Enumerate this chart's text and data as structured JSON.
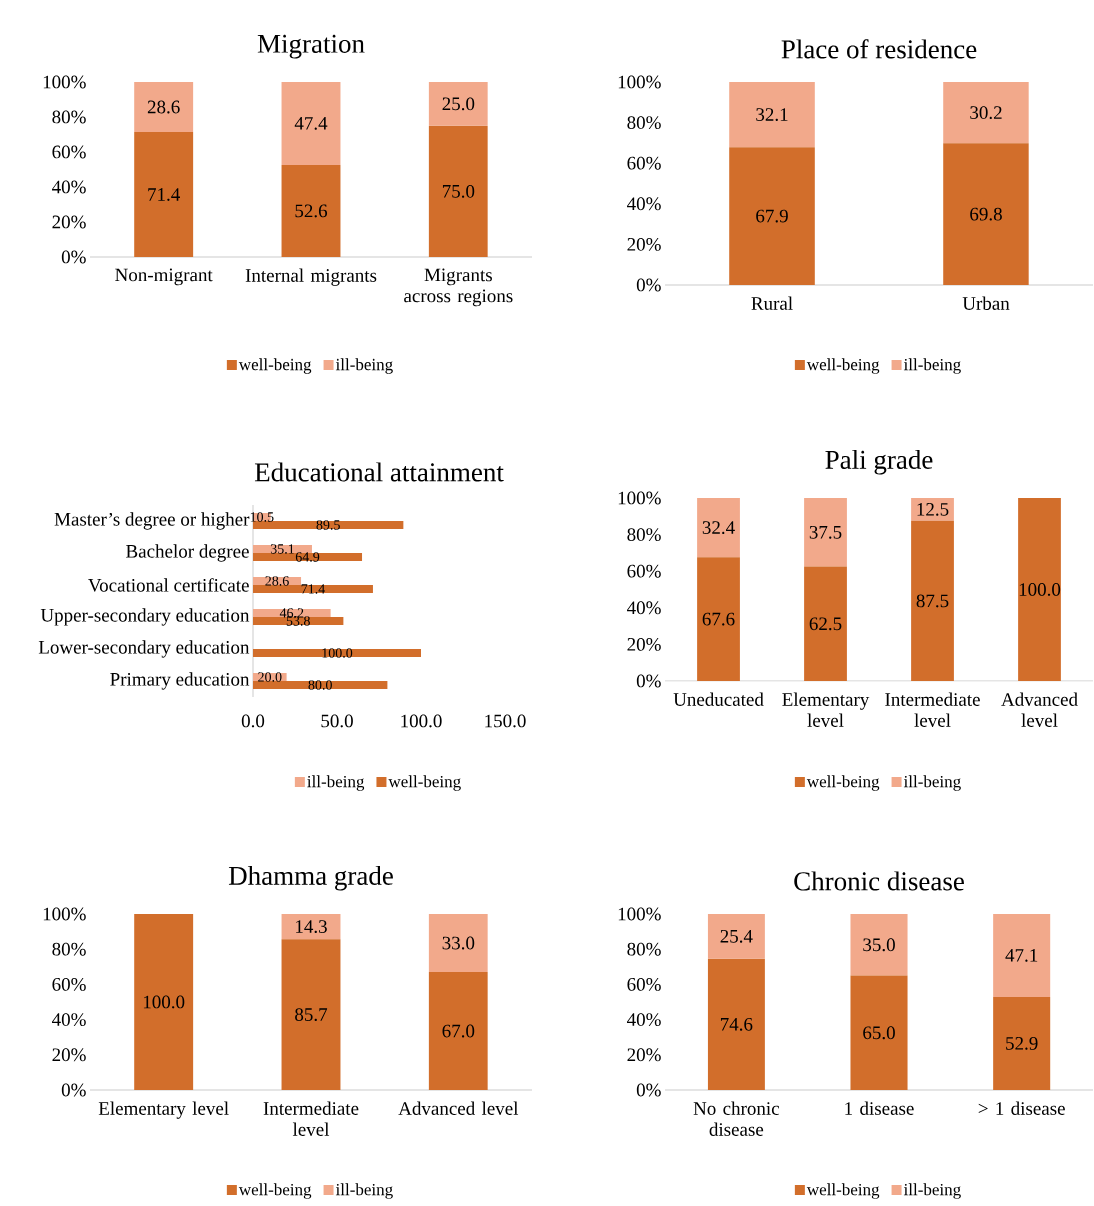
{
  "chart_data": [
    {
      "type": "bar",
      "title": "Migration",
      "stacked": true,
      "legend": "bottom",
      "categories": [
        "Non-migrant",
        "Internal migrants",
        "Migrants across regions"
      ],
      "series": [
        {
          "name": "well-being",
          "color": "#d26e2b",
          "values": [
            71.4,
            52.6,
            75.0
          ],
          "value_labels": [
            "71.4",
            "52.6",
            "75.0"
          ]
        },
        {
          "name": "ill-being",
          "color": "#f2a98b",
          "values": [
            28.6,
            47.4,
            25.0
          ],
          "value_labels": [
            "28.6",
            "47.4",
            "25.0"
          ]
        }
      ],
      "ylim": [
        0,
        100
      ],
      "yticks": [
        {
          "value": 0,
          "label": "0%"
        },
        {
          "value": 20,
          "label": "20%"
        },
        {
          "value": 40,
          "label": "40%"
        },
        {
          "value": 60,
          "label": "60%"
        },
        {
          "value": 80,
          "label": "80%"
        },
        {
          "value": 100,
          "label": "100%"
        }
      ]
    },
    {
      "type": "bar",
      "title": "Place of residence",
      "stacked": true,
      "legend": "bottom",
      "categories": [
        "Rural",
        "Urban"
      ],
      "series": [
        {
          "name": "well-being",
          "color": "#d26e2b",
          "values": [
            67.9,
            69.8
          ],
          "value_labels": [
            "67.9",
            "69.8"
          ]
        },
        {
          "name": "ill-being",
          "color": "#f2a98b",
          "values": [
            32.1,
            30.2
          ],
          "value_labels": [
            "32.1",
            "30.2"
          ]
        }
      ],
      "ylim": [
        0,
        100
      ],
      "yticks": [
        {
          "value": 0,
          "label": "0%"
        },
        {
          "value": 20,
          "label": "20%"
        },
        {
          "value": 40,
          "label": "40%"
        },
        {
          "value": 60,
          "label": "60%"
        },
        {
          "value": 80,
          "label": "80%"
        },
        {
          "value": 100,
          "label": "100%"
        }
      ]
    },
    {
      "type": "bar",
      "title": "Educational attainment",
      "orientation": "horizontal",
      "legend": "bottom",
      "categories": [
        "Master’s degree or higher",
        "Bachelor degree",
        "Vocational certificate",
        "Upper-secondary education",
        "Lower-secondary education",
        "Primary education"
      ],
      "series": [
        {
          "name": "ill-being",
          "color": "#f2a98b",
          "values": [
            10.5,
            35.1,
            28.6,
            46.2,
            0,
            20.0
          ],
          "value_labels": [
            "10.5",
            "35.1",
            "28.6",
            "46.2",
            null,
            "20.0"
          ]
        },
        {
          "name": "well-being",
          "color": "#d26e2b",
          "values": [
            89.5,
            64.9,
            71.4,
            53.8,
            100.0,
            80.0
          ],
          "value_labels": [
            "89.5",
            "64.9",
            "71.4",
            "53.8",
            "100.0",
            "80.0"
          ]
        }
      ],
      "xlim": [
        0,
        150
      ],
      "xticks": [
        {
          "value": 0,
          "label": "0.0"
        },
        {
          "value": 50,
          "label": "50.0"
        },
        {
          "value": 100,
          "label": "100.0"
        },
        {
          "value": 150,
          "label": "150.0"
        }
      ]
    },
    {
      "type": "bar",
      "title": "Pali grade",
      "stacked": true,
      "legend": "bottom",
      "categories": [
        "Uneducated",
        "Elementary level",
        "Intermediate level",
        "Advanced level"
      ],
      "series": [
        {
          "name": "well-being",
          "color": "#d26e2b",
          "values": [
            67.6,
            62.5,
            87.5,
            100.0
          ],
          "value_labels": [
            "67.6",
            "62.5",
            "87.5",
            "100.0"
          ]
        },
        {
          "name": "ill-being",
          "color": "#f2a98b",
          "values": [
            32.4,
            37.5,
            12.5,
            0
          ],
          "value_labels": [
            "32.4",
            "37.5",
            "12.5",
            null
          ]
        }
      ],
      "ylim": [
        0,
        100
      ],
      "yticks": [
        {
          "value": 0,
          "label": "0%"
        },
        {
          "value": 20,
          "label": "20%"
        },
        {
          "value": 40,
          "label": "40%"
        },
        {
          "value": 60,
          "label": "60%"
        },
        {
          "value": 80,
          "label": "80%"
        },
        {
          "value": 100,
          "label": "100%"
        }
      ]
    },
    {
      "type": "bar",
      "title": "Dhamma grade",
      "stacked": true,
      "legend": "bottom",
      "categories": [
        "Elementary level",
        "Intermediate level",
        "Advanced level"
      ],
      "series": [
        {
          "name": "well-being",
          "color": "#d26e2b",
          "values": [
            100.0,
            85.7,
            67.0
          ],
          "value_labels": [
            "100.0",
            "85.7",
            "67.0"
          ]
        },
        {
          "name": "ill-being",
          "color": "#f2a98b",
          "values": [
            0,
            14.3,
            33.0
          ],
          "value_labels": [
            null,
            "14.3",
            "33.0"
          ]
        }
      ],
      "ylim": [
        0,
        100
      ],
      "yticks": [
        {
          "value": 0,
          "label": "0%"
        },
        {
          "value": 20,
          "label": "20%"
        },
        {
          "value": 40,
          "label": "40%"
        },
        {
          "value": 60,
          "label": "60%"
        },
        {
          "value": 80,
          "label": "80%"
        },
        {
          "value": 100,
          "label": "100%"
        }
      ]
    },
    {
      "type": "bar",
      "title": "Chronic disease",
      "stacked": true,
      "legend": "bottom",
      "categories": [
        "No chronic disease",
        "1 disease",
        "> 1 disease"
      ],
      "series": [
        {
          "name": "well-being",
          "color": "#d26e2b",
          "values": [
            74.6,
            65.0,
            52.9
          ],
          "value_labels": [
            "74.6",
            "65.0",
            "52.9"
          ]
        },
        {
          "name": "ill-being",
          "color": "#f2a98b",
          "values": [
            25.4,
            35.0,
            47.1
          ],
          "value_labels": [
            "25.4",
            "35.0",
            "47.1"
          ]
        }
      ],
      "ylim": [
        0,
        100
      ],
      "yticks": [
        {
          "value": 0,
          "label": "0%"
        },
        {
          "value": 20,
          "label": "20%"
        },
        {
          "value": 40,
          "label": "40%"
        },
        {
          "value": 60,
          "label": "60%"
        },
        {
          "value": 80,
          "label": "80%"
        },
        {
          "value": 100,
          "label": "100%"
        }
      ]
    }
  ]
}
